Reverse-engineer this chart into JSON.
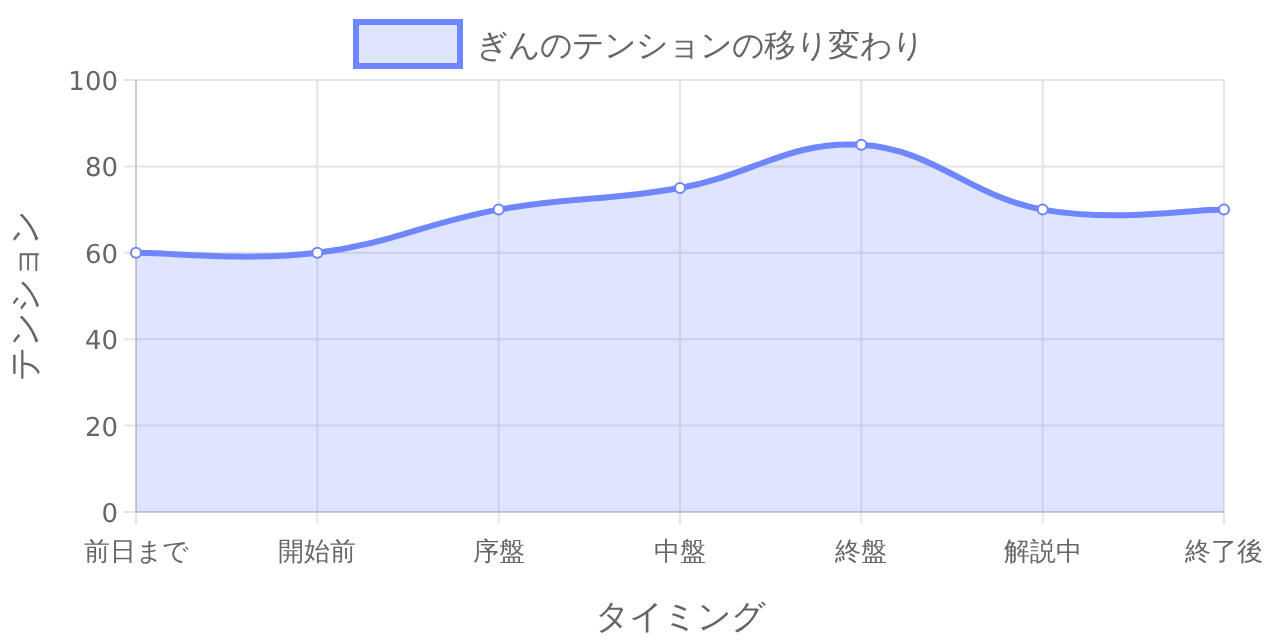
{
  "chart_data": {
    "type": "area",
    "xlabel": "タイミング",
    "ylabel": "テンション",
    "categories": [
      "前日まで",
      "開始前",
      "序盤",
      "中盤",
      "終盤",
      "解説中",
      "終了後"
    ],
    "series": [
      {
        "name": "ぎんのテンションの移り変わり",
        "color": "#6f86ff",
        "values": [
          60,
          60,
          70,
          75,
          85,
          70,
          70
        ]
      }
    ],
    "ylim": [
      0,
      100
    ],
    "yticks": [
      0,
      20,
      40,
      60,
      80,
      100
    ],
    "grid": true,
    "legend": "top",
    "marker": "circle"
  }
}
